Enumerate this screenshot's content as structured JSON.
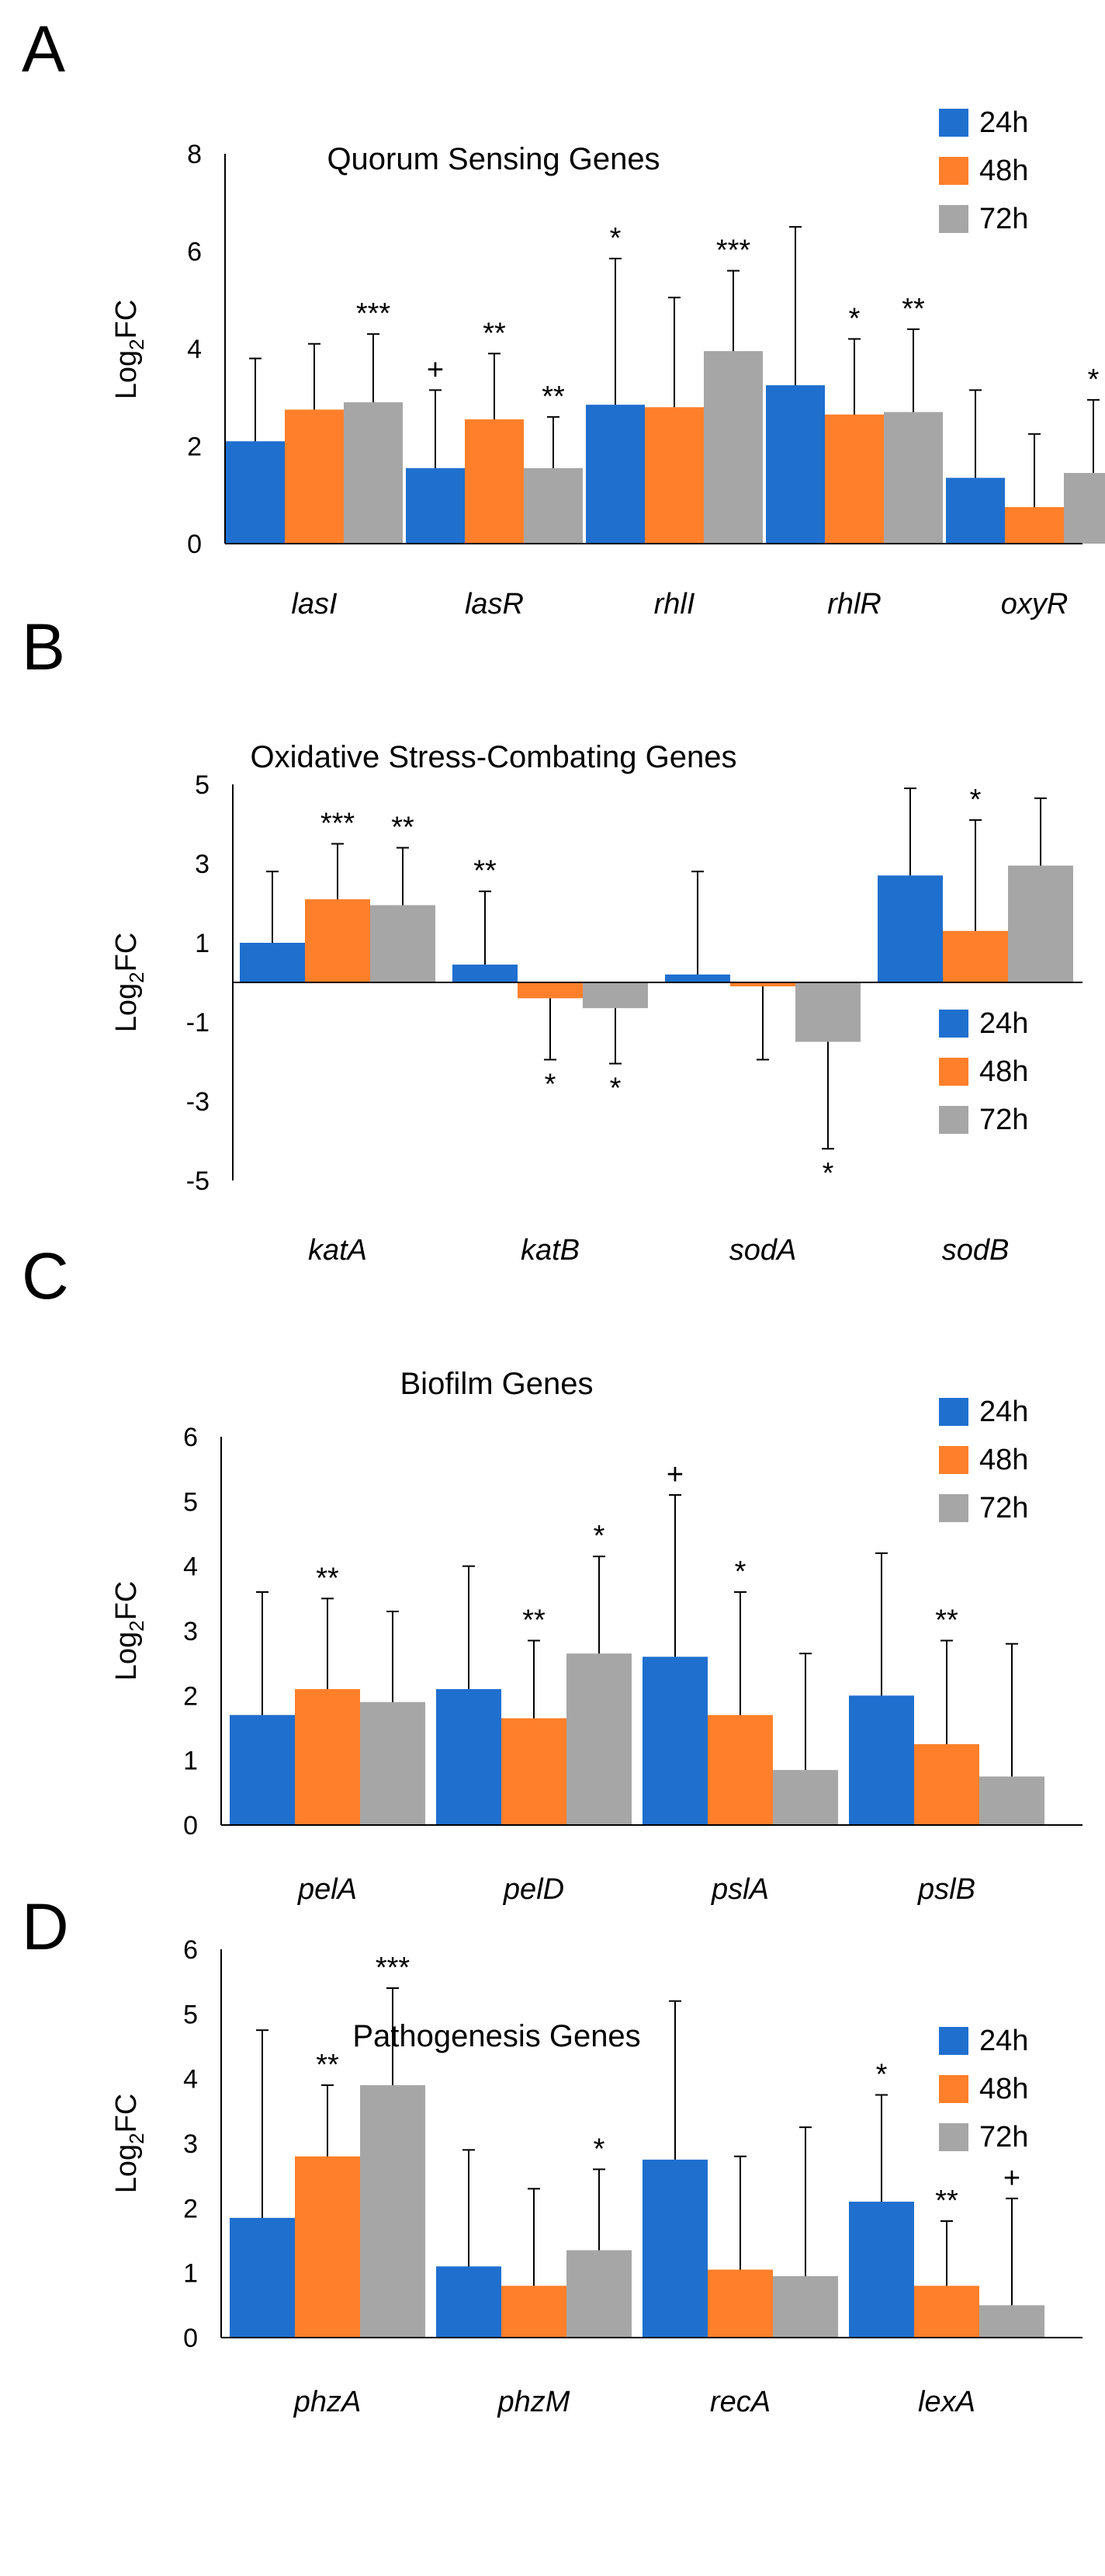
{
  "chart_data": [
    {
      "panel": "A",
      "type": "bar",
      "title": "Quorum Sensing Genes",
      "ylabel": "Log",
      "ylabel_sub": "2",
      "ylabel_suffix": "FC",
      "ylim": [
        0,
        8
      ],
      "yticks": [
        0,
        2,
        4,
        6,
        8
      ],
      "categories": [
        "lasI",
        "lasR",
        "rhlI",
        "rhlR",
        "oxyR"
      ],
      "legend_position": "top-right",
      "series": [
        {
          "name": "24h",
          "color": "#1f6fcf",
          "values": [
            2.1,
            1.55,
            2.85,
            3.25,
            1.35
          ],
          "errors": [
            1.7,
            1.6,
            3.0,
            3.25,
            1.8
          ],
          "sig": [
            "",
            "+",
            "*",
            "",
            ""
          ]
        },
        {
          "name": "48h",
          "color": "#ff7f2a",
          "values": [
            2.75,
            2.55,
            2.8,
            2.65,
            0.75
          ],
          "errors": [
            1.35,
            1.35,
            2.25,
            1.55,
            1.5
          ],
          "sig": [
            "",
            "**",
            "",
            "*",
            ""
          ]
        },
        {
          "name": "72h",
          "color": "#a6a6a6",
          "values": [
            2.9,
            1.55,
            3.95,
            2.7,
            1.45
          ],
          "errors": [
            1.4,
            1.05,
            1.65,
            1.7,
            1.5
          ],
          "sig": [
            "***",
            "**",
            "***",
            "**",
            "*"
          ]
        }
      ]
    },
    {
      "panel": "B",
      "type": "bar",
      "title": "Oxidative Stress-Combating Genes",
      "ylabel": "Log",
      "ylabel_sub": "2",
      "ylabel_suffix": "FC",
      "ylim": [
        -5,
        5
      ],
      "yticks": [
        -5,
        -3,
        -1,
        1,
        3,
        5
      ],
      "categories": [
        "katA",
        "katB",
        "sodA",
        "sodB"
      ],
      "legend_position": "bottom-right",
      "series": [
        {
          "name": "24h",
          "color": "#1f6fcf",
          "values": [
            1.0,
            0.45,
            0.2,
            2.7
          ],
          "errors": [
            1.8,
            1.85,
            2.6,
            2.2
          ],
          "sig": [
            "",
            "**",
            "",
            ""
          ]
        },
        {
          "name": "48h",
          "color": "#ff7f2a",
          "values": [
            2.1,
            -0.4,
            -0.1,
            1.3
          ],
          "errors": [
            1.4,
            1.55,
            1.85,
            2.8
          ],
          "sig": [
            "***",
            "*",
            "",
            "*"
          ]
        },
        {
          "name": "72h",
          "color": "#a6a6a6",
          "values": [
            1.95,
            -0.65,
            -1.5,
            2.95
          ],
          "errors": [
            1.45,
            1.4,
            2.7,
            1.7
          ],
          "sig": [
            "**",
            "*",
            "*",
            ""
          ]
        }
      ]
    },
    {
      "panel": "C",
      "type": "bar",
      "title": "Biofilm Genes",
      "ylabel": "Log",
      "ylabel_sub": "2",
      "ylabel_suffix": "FC",
      "ylim": [
        0,
        6
      ],
      "yticks": [
        0,
        1,
        2,
        3,
        4,
        5,
        6
      ],
      "categories": [
        "pelA",
        "pelD",
        "pslA",
        "pslB"
      ],
      "legend_position": "top-right",
      "series": [
        {
          "name": "24h",
          "color": "#1f6fcf",
          "values": [
            1.7,
            2.1,
            2.6,
            2.0
          ],
          "errors": [
            1.9,
            1.9,
            2.5,
            2.2
          ],
          "sig": [
            "",
            "",
            "+",
            ""
          ]
        },
        {
          "name": "48h",
          "color": "#ff7f2a",
          "values": [
            2.1,
            1.65,
            1.7,
            1.25
          ],
          "errors": [
            1.4,
            1.2,
            1.9,
            1.6
          ],
          "sig": [
            "**",
            "**",
            "*",
            "**"
          ]
        },
        {
          "name": "72h",
          "color": "#a6a6a6",
          "values": [
            1.9,
            2.65,
            0.85,
            0.75
          ],
          "errors": [
            1.4,
            1.5,
            1.8,
            2.05
          ],
          "sig": [
            "",
            "*",
            "",
            ""
          ]
        }
      ]
    },
    {
      "panel": "D",
      "type": "bar",
      "title": "Pathogenesis Genes",
      "ylabel": "Log",
      "ylabel_sub": "2",
      "ylabel_suffix": "FC",
      "ylim": [
        0,
        6
      ],
      "yticks": [
        0,
        1,
        2,
        3,
        4,
        5,
        6
      ],
      "categories": [
        "phzA",
        "phzM",
        "recA",
        "lexA"
      ],
      "legend_position": "top-right",
      "series": [
        {
          "name": "24h",
          "color": "#1f6fcf",
          "values": [
            1.85,
            1.1,
            2.75,
            2.1
          ],
          "errors": [
            2.9,
            1.8,
            2.45,
            1.65
          ],
          "sig": [
            "",
            "",
            "",
            "*"
          ]
        },
        {
          "name": "48h",
          "color": "#ff7f2a",
          "values": [
            2.8,
            0.8,
            1.05,
            0.8
          ],
          "errors": [
            1.1,
            1.5,
            1.75,
            1.0
          ],
          "sig": [
            "**",
            "",
            "",
            "**"
          ]
        },
        {
          "name": "72h",
          "color": "#a6a6a6",
          "values": [
            3.9,
            1.35,
            0.95,
            0.5
          ],
          "errors": [
            1.5,
            1.25,
            2.3,
            1.65
          ],
          "sig": [
            "***",
            "*",
            "",
            "+"
          ]
        }
      ]
    }
  ]
}
